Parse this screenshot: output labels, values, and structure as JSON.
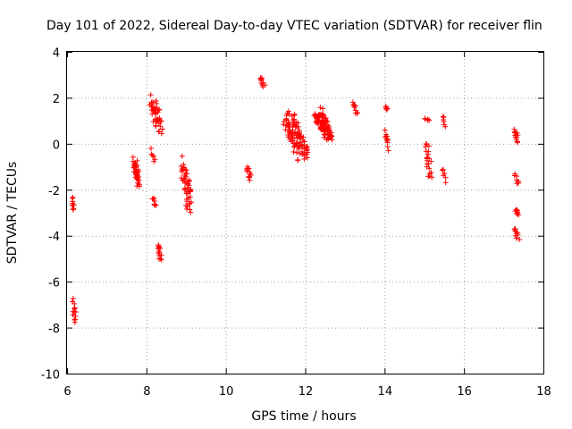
{
  "chart_data": {
    "type": "scatter",
    "title": "Day 101 of 2022, Sidereal Day-to-day VTEC variation (SDTVAR) for receiver flin",
    "xlabel": "GPS time / hours",
    "ylabel": "SDTVAR / TECUs",
    "xlim": [
      6,
      18
    ],
    "ylim": [
      -10,
      4
    ],
    "xticks": [
      6,
      8,
      10,
      12,
      14,
      16,
      18
    ],
    "yticks": [
      -10,
      -8,
      -6,
      -4,
      -2,
      0,
      2,
      4
    ],
    "grid": true,
    "marker": "+",
    "color": "#ff0000",
    "series": [
      {
        "name": "SDTVAR",
        "clusters": [
          {
            "x0": 6.1,
            "x1": 6.2,
            "y0": -2.2,
            "y1": -3.1,
            "n": 10
          },
          {
            "x0": 6.1,
            "x1": 6.25,
            "y0": -6.6,
            "y1": -8.0,
            "n": 14
          },
          {
            "x0": 7.65,
            "x1": 7.85,
            "y0": -0.4,
            "y1": -2.0,
            "n": 40
          },
          {
            "x0": 8.05,
            "x1": 8.45,
            "y0": 2.3,
            "y1": 0.3,
            "n": 45
          },
          {
            "x0": 8.1,
            "x1": 8.25,
            "y0": -0.2,
            "y1": -0.9,
            "n": 6
          },
          {
            "x0": 8.15,
            "x1": 8.25,
            "y0": -2.3,
            "y1": -2.8,
            "n": 8
          },
          {
            "x0": 8.25,
            "x1": 8.4,
            "y0": -4.3,
            "y1": -5.1,
            "n": 14
          },
          {
            "x0": 8.85,
            "x1": 9.2,
            "y0": -0.5,
            "y1": -3.2,
            "n": 50
          },
          {
            "x0": 10.5,
            "x1": 10.65,
            "y0": -1.0,
            "y1": -1.6,
            "n": 12
          },
          {
            "x0": 10.85,
            "x1": 11.0,
            "y0": 3.0,
            "y1": 2.3,
            "n": 10
          },
          {
            "x0": 11.4,
            "x1": 12.1,
            "y0": 1.5,
            "y1": -0.8,
            "n": 110
          },
          {
            "x0": 12.2,
            "x1": 12.7,
            "y0": 1.6,
            "y1": 0.0,
            "n": 100
          },
          {
            "x0": 13.2,
            "x1": 13.35,
            "y0": 2.0,
            "y1": 1.2,
            "n": 10
          },
          {
            "x0": 14.0,
            "x1": 14.1,
            "y0": 1.7,
            "y1": 1.4,
            "n": 5
          },
          {
            "x0": 14.0,
            "x1": 14.1,
            "y0": 0.7,
            "y1": -0.3,
            "n": 12
          },
          {
            "x0": 15.0,
            "x1": 15.15,
            "y0": 1.1,
            "y1": 1.0,
            "n": 5
          },
          {
            "x0": 15.0,
            "x1": 15.2,
            "y0": 0.3,
            "y1": -1.7,
            "n": 22
          },
          {
            "x0": 15.45,
            "x1": 15.55,
            "y0": 1.3,
            "y1": 0.7,
            "n": 6
          },
          {
            "x0": 15.45,
            "x1": 15.55,
            "y0": -1.0,
            "y1": -1.8,
            "n": 6
          },
          {
            "x0": 17.25,
            "x1": 17.4,
            "y0": 0.7,
            "y1": 0.0,
            "n": 14
          },
          {
            "x0": 17.25,
            "x1": 17.4,
            "y0": -1.3,
            "y1": -1.8,
            "n": 8
          },
          {
            "x0": 17.25,
            "x1": 17.4,
            "y0": -2.8,
            "y1": -3.1,
            "n": 10
          },
          {
            "x0": 17.25,
            "x1": 17.4,
            "y0": -3.6,
            "y1": -4.2,
            "n": 10
          }
        ]
      }
    ]
  }
}
